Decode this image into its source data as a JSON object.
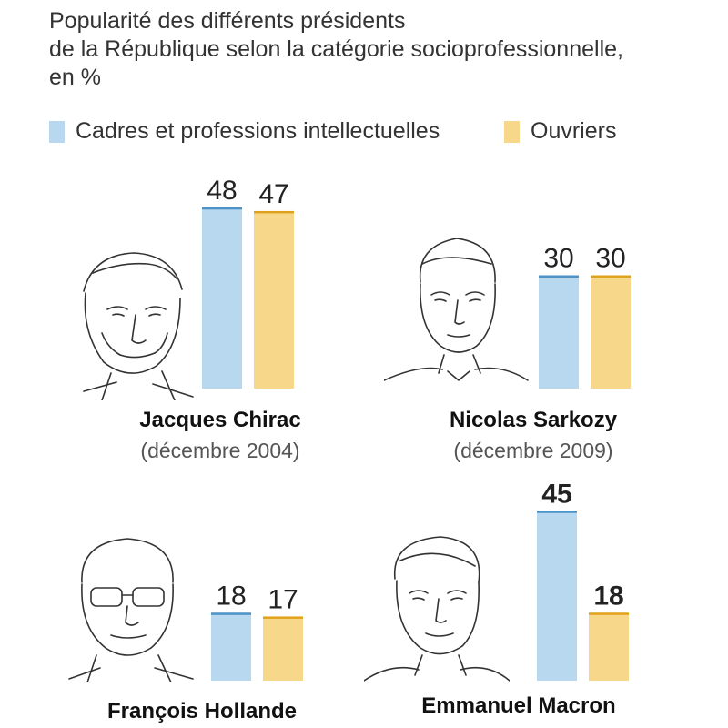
{
  "title_lines": [
    "Popularité des différents présidents",
    "de la République selon la catégorie socioprofessionnelle,",
    "en %"
  ],
  "colors": {
    "cadres": "#b7d8ef",
    "cadres_top": "#4d93c7",
    "ouvriers": "#f7d88a",
    "ouvriers_top": "#e0a21d",
    "text": "#222222"
  },
  "chart_data": {
    "type": "bar",
    "title": "Popularité des différents présidents de la République selon la catégorie socioprofessionnelle, en %",
    "ylabel": "",
    "legend": [
      {
        "name": "Cadres et professions intellectuelles",
        "color": "#b7d8ef"
      },
      {
        "name": "Ouvriers",
        "color": "#f7d88a"
      }
    ],
    "categories": [
      "Jacques Chirac (décembre 2004)",
      "Nicolas Sarkozy (décembre 2009)",
      "François Hollande",
      "Emmanuel Macron"
    ],
    "series": [
      {
        "name": "Cadres et professions intellectuelles",
        "values": [
          48,
          30,
          18,
          45
        ]
      },
      {
        "name": "Ouvriers",
        "values": [
          47,
          30,
          17,
          18
        ]
      }
    ],
    "presidents": [
      {
        "name": "Jacques Chirac",
        "date": "(décembre 2004)",
        "cadres": 48,
        "ouvriers": 47,
        "bold_labels": false,
        "portrait": "portrait-chirac-icon"
      },
      {
        "name": "Nicolas Sarkozy",
        "date": "(décembre 2009)",
        "cadres": 30,
        "ouvriers": 30,
        "bold_labels": false,
        "portrait": "portrait-sarkozy-icon"
      },
      {
        "name": "François Hollande",
        "date": "",
        "cadres": 18,
        "ouvriers": 17,
        "bold_labels": false,
        "portrait": "portrait-hollande-icon"
      },
      {
        "name": "Emmanuel Macron",
        "date": "",
        "cadres": 45,
        "ouvriers": 18,
        "bold_labels": true,
        "portrait": "portrait-macron-icon"
      }
    ]
  }
}
